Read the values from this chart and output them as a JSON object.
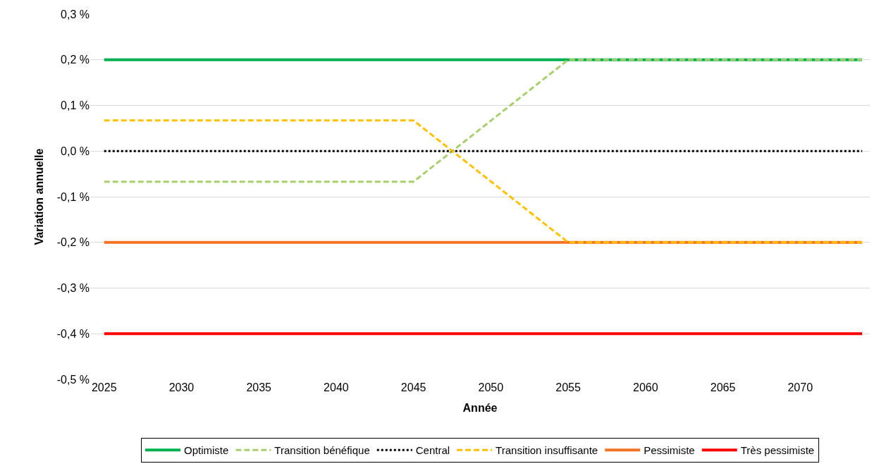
{
  "chart_data": {
    "type": "line",
    "xlabel": "Année",
    "ylabel": "Variation annuelle",
    "xlim": [
      2024.1,
      2074.5
    ],
    "xticks": [
      2025,
      2030,
      2035,
      2040,
      2045,
      2050,
      2055,
      2060,
      2065,
      2070
    ],
    "ylim": [
      -0.5,
      0.3
    ],
    "yticks": [
      {
        "value": -0.5,
        "label": "-0,5 %"
      },
      {
        "value": -0.4,
        "label": "-0,4 %"
      },
      {
        "value": -0.3,
        "label": "-0,3 %"
      },
      {
        "value": -0.2,
        "label": "-0,2 %"
      },
      {
        "value": -0.1,
        "label": "-0,1 %"
      },
      {
        "value": 0,
        "label": "0,0 %"
      },
      {
        "value": 0.1,
        "label": "0,1 %"
      },
      {
        "value": 0.2,
        "label": "0,2 %"
      },
      {
        "value": 0.3,
        "label": "0,3 %"
      }
    ],
    "grid": "y",
    "legend": "bottom",
    "marker": "none",
    "series": [
      {
        "name": "Optimiste",
        "color": "#00b050",
        "line_style": "solid",
        "x": [
          2025,
          2074
        ],
        "values": [
          0.2,
          0.2
        ]
      },
      {
        "name": "Transition bénéfique",
        "color": "#a9d06e",
        "line_style": "dashed",
        "x": [
          2025,
          2045,
          2055,
          2074
        ],
        "values": [
          -0.067,
          -0.067,
          0.2,
          0.2
        ]
      },
      {
        "name": "Central",
        "color": "#000000",
        "line_style": "dotted",
        "x": [
          2025,
          2074
        ],
        "values": [
          0,
          0
        ]
      },
      {
        "name": "Transition insuffisante",
        "color": "#ffc000",
        "line_style": "dashed",
        "x": [
          2025,
          2045,
          2055,
          2074
        ],
        "values": [
          0.067,
          0.067,
          -0.2,
          -0.2
        ]
      },
      {
        "name": "Pessimiste",
        "color": "#f47320",
        "line_style": "solid",
        "x": [
          2025,
          2074
        ],
        "values": [
          -0.2,
          -0.2
        ]
      },
      {
        "name": "Très pessimiste",
        "color": "#ff0000",
        "line_style": "solid",
        "x": [
          2025,
          2074
        ],
        "values": [
          -0.4,
          -0.4
        ]
      }
    ]
  }
}
